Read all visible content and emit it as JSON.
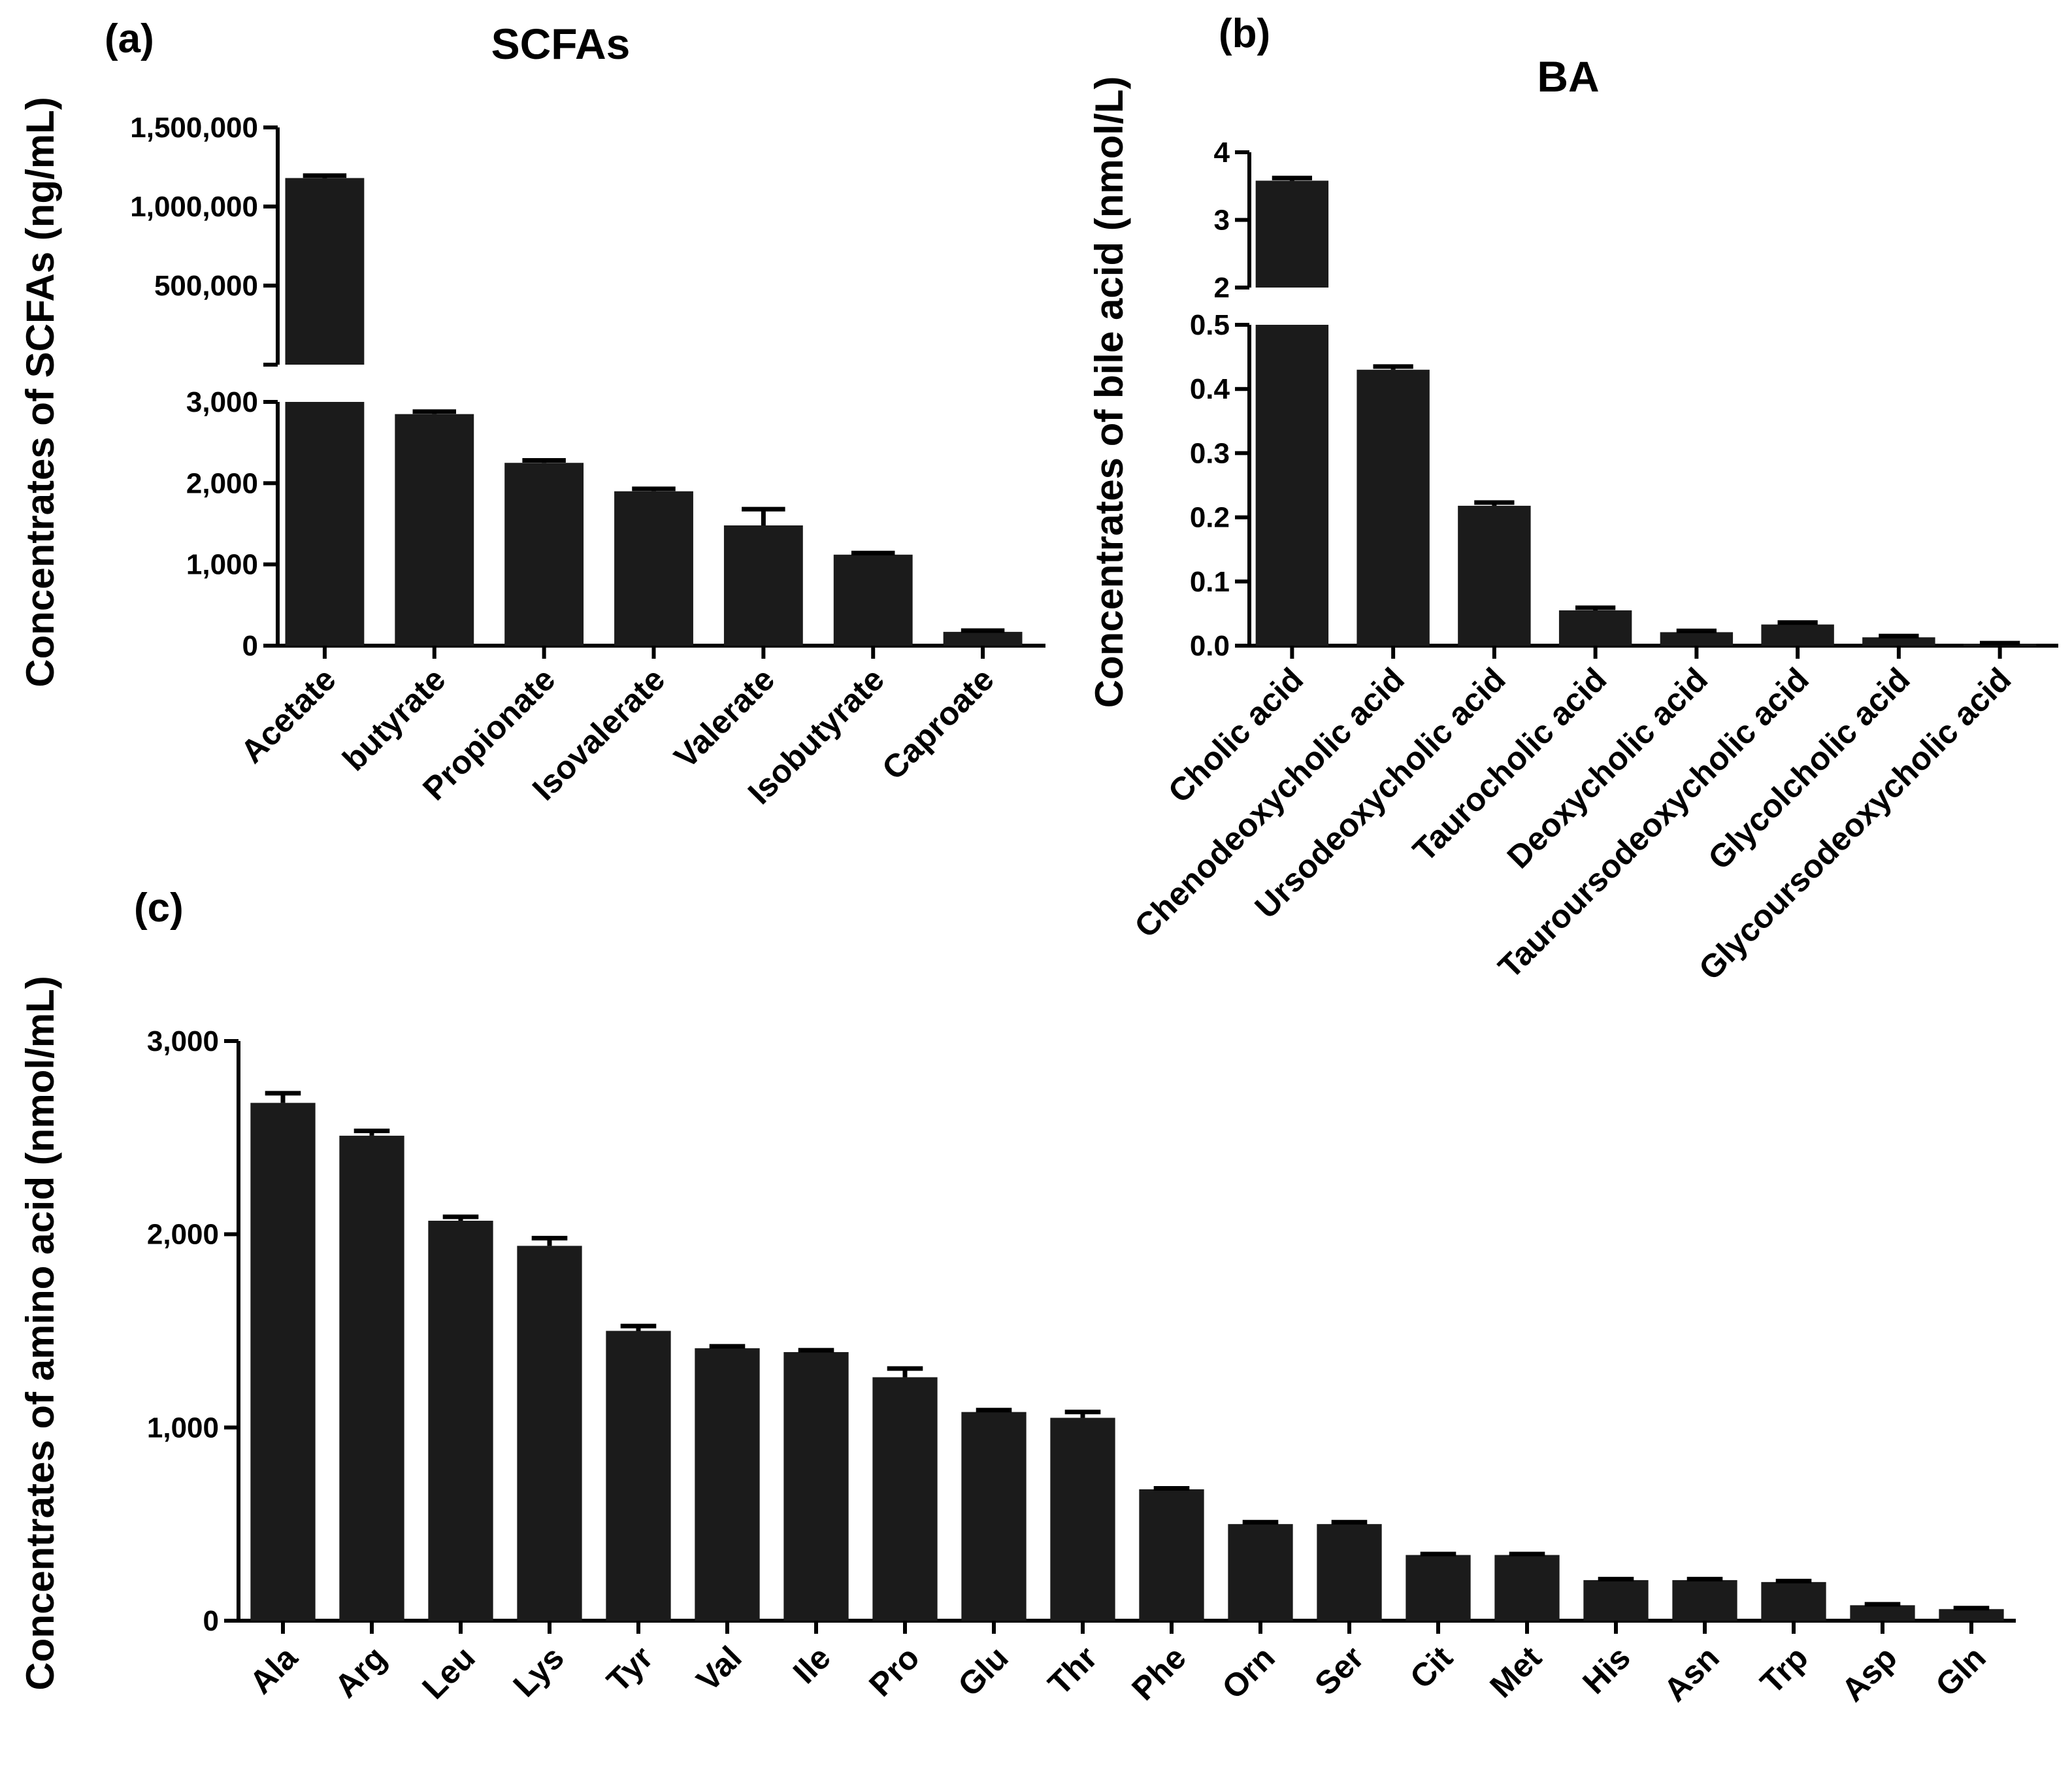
{
  "chart_data": [
    {
      "panel": "(a)",
      "type": "bar",
      "title": "SCFAs",
      "xlabel": "",
      "ylabel": "Concentrates of SCFAs (ng/mL)",
      "categories": [
        "Acetate",
        "butyrate",
        "Propionate",
        "Isovalerate",
        "Valerate",
        "Isobutyrate",
        "Caproate"
      ],
      "values": [
        1180000,
        2850,
        2250,
        1900,
        1480,
        1120,
        170
      ],
      "errors": [
        15000,
        30,
        30,
        30,
        200,
        20,
        15
      ],
      "broken_axis": {
        "lower_range": [
          0,
          3000
        ],
        "upper_range": [
          0,
          1500000
        ],
        "lower_ticks": [
          0,
          1000,
          2000,
          3000
        ],
        "upper_ticks": [
          500000,
          1000000,
          1500000
        ],
        "lower_tick_labels": [
          "0",
          "1,000",
          "2,000",
          "3,000"
        ],
        "upper_tick_labels": [
          "500,000",
          "1,000,000",
          "1,500,000"
        ]
      }
    },
    {
      "panel": "(b)",
      "type": "bar",
      "title": "BA",
      "xlabel": "",
      "ylabel": "Concentrates of bile acid (nmol/L)",
      "categories": [
        "Cholic acid",
        "Chenodeoxycholic acid",
        "Ursodeoxycholic acid",
        "Taurocholic acid",
        "Deoxycholic acid",
        "Tauroursodeoxycholic acid",
        "Glycolcholic acid",
        "Glycoursodeoxycholic acid"
      ],
      "values": [
        3.58,
        0.43,
        0.218,
        0.055,
        0.021,
        0.033,
        0.013,
        0.003
      ],
      "errors": [
        0.04,
        0.005,
        0.005,
        0.004,
        0.002,
        0.003,
        0.002,
        0.001
      ],
      "broken_axis": {
        "lower_range": [
          0,
          0.5
        ],
        "upper_range": [
          2,
          4
        ],
        "lower_ticks": [
          0,
          0.1,
          0.2,
          0.3,
          0.4,
          0.5
        ],
        "upper_ticks": [
          2,
          3,
          4
        ],
        "lower_tick_labels": [
          "0.0",
          "0.1",
          "0.2",
          "0.3",
          "0.4",
          "0.5"
        ],
        "upper_tick_labels": [
          "2",
          "3",
          "4"
        ]
      }
    },
    {
      "panel": "(c)",
      "type": "bar",
      "title": "",
      "xlabel": "",
      "ylabel": "Concentrates of amino acid (nmol/mL)",
      "categories": [
        "Ala",
        "Arg",
        "Leu",
        "Lys",
        "Tyr",
        "Val",
        "Ile",
        "Pro",
        "Glu",
        "Thr",
        "Phe",
        "Orn",
        "Ser",
        "Cit",
        "Met",
        "His",
        "Asn",
        "Trp",
        "Asp",
        "Gln"
      ],
      "values": [
        2680,
        2510,
        2070,
        1940,
        1500,
        1410,
        1390,
        1260,
        1080,
        1050,
        680,
        500,
        500,
        340,
        340,
        210,
        210,
        200,
        80,
        60
      ],
      "errors": [
        50,
        25,
        20,
        40,
        25,
        10,
        10,
        45,
        10,
        30,
        5,
        10,
        10,
        5,
        5,
        5,
        5,
        5,
        5,
        5
      ],
      "ylim": [
        0,
        3000
      ],
      "yticks": [
        0,
        1000,
        2000,
        3000
      ],
      "ytick_labels": [
        "0",
        "1,000",
        "2,000",
        "3,000"
      ]
    }
  ]
}
